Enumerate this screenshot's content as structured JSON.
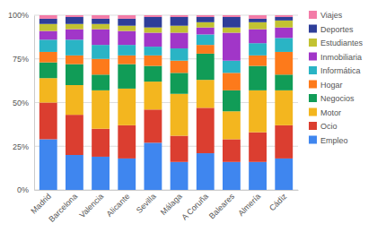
{
  "chart_data": {
    "type": "bar",
    "stacked": true,
    "grid": true,
    "legend": "right",
    "categories": [
      "Madrid",
      "Barcelona",
      "Valencia",
      "Alicante",
      "Sevilla",
      "Málaga",
      "A Coruña",
      "Baleares",
      "Almería",
      "Cádiz"
    ],
    "ylim": [
      0,
      100
    ],
    "yticks": [
      {
        "value": 0,
        "label": "0%"
      },
      {
        "value": 25,
        "label": "25%"
      },
      {
        "value": 50,
        "label": "50%"
      },
      {
        "value": 75,
        "label": "75%"
      },
      {
        "value": 100,
        "label": "100%"
      }
    ],
    "series": [
      {
        "name": "Empleo",
        "color": "#3f86ef",
        "values": [
          29,
          20,
          19,
          18,
          27,
          16,
          21,
          16,
          16,
          18
        ]
      },
      {
        "name": "Ocio",
        "color": "#db3e30",
        "values": [
          21,
          23,
          16,
          19,
          19,
          15,
          26,
          13,
          17,
          19
        ]
      },
      {
        "name": "Motor",
        "color": "#f3b61f",
        "values": [
          14,
          17,
          22,
          21,
          16,
          24,
          16,
          16,
          24,
          20
        ]
      },
      {
        "name": "Negocios",
        "color": "#119c57",
        "values": [
          9,
          12,
          9,
          14,
          9,
          12,
          15,
          12,
          14,
          9
        ]
      },
      {
        "name": "Hogar",
        "color": "#fd7a1b",
        "values": [
          6,
          5,
          9,
          5,
          6,
          7,
          5,
          10,
          6,
          13
        ]
      },
      {
        "name": "Informática",
        "color": "#2ab4c5",
        "values": [
          7,
          9,
          8,
          6,
          5,
          7,
          6,
          7,
          7,
          8
        ]
      },
      {
        "name": "Inmobiliaria",
        "color": "#a136c8",
        "values": [
          5,
          6,
          9,
          8,
          8,
          9,
          4,
          16,
          8,
          6
        ]
      },
      {
        "name": "Estudiantes",
        "color": "#c2c232",
        "values": [
          4,
          3,
          3,
          3,
          3,
          4,
          3,
          3,
          4,
          4
        ]
      },
      {
        "name": "Deportes",
        "color": "#2e3e99",
        "values": [
          3,
          4,
          3,
          4,
          6,
          5,
          3,
          6,
          2,
          2
        ]
      },
      {
        "name": "Viajes",
        "color": "#f37ca8",
        "values": [
          2,
          1,
          2,
          2,
          1,
          1,
          1,
          1,
          2,
          1
        ]
      }
    ]
  }
}
